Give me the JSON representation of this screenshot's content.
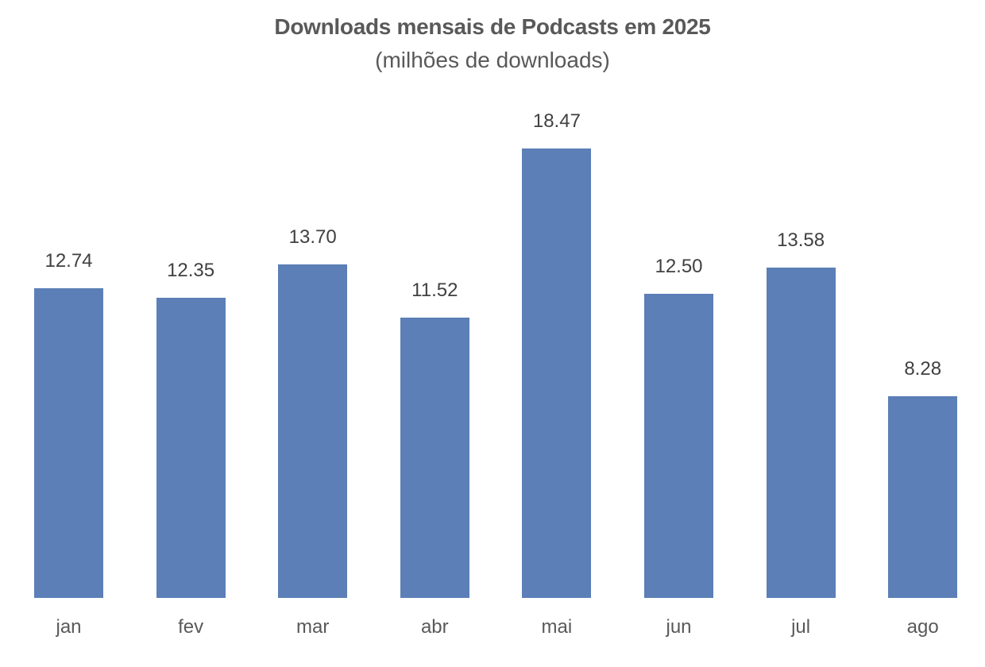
{
  "chart": {
    "title": "Downloads mensais de Podcasts em 2025",
    "subtitle": "(milhões de downloads)",
    "bar_color": "#5b7fb6"
  },
  "chart_data": {
    "type": "bar",
    "title": "Downloads mensais de Podcasts em 2025",
    "subtitle": "(milhões de downloads)",
    "categories": [
      "jan",
      "fev",
      "mar",
      "abr",
      "mai",
      "jun",
      "jul",
      "ago"
    ],
    "values": [
      12.74,
      12.35,
      13.7,
      11.52,
      18.47,
      12.5,
      13.58,
      8.28
    ],
    "value_labels": [
      "12.74",
      "12.35",
      "13.70",
      "11.52",
      "18.47",
      "12.50",
      "13.58",
      "8.28"
    ],
    "xlabel": "",
    "ylabel": "",
    "ylim": [
      0,
      18.47
    ],
    "grid": false,
    "legend": "none",
    "data_labels": true
  }
}
